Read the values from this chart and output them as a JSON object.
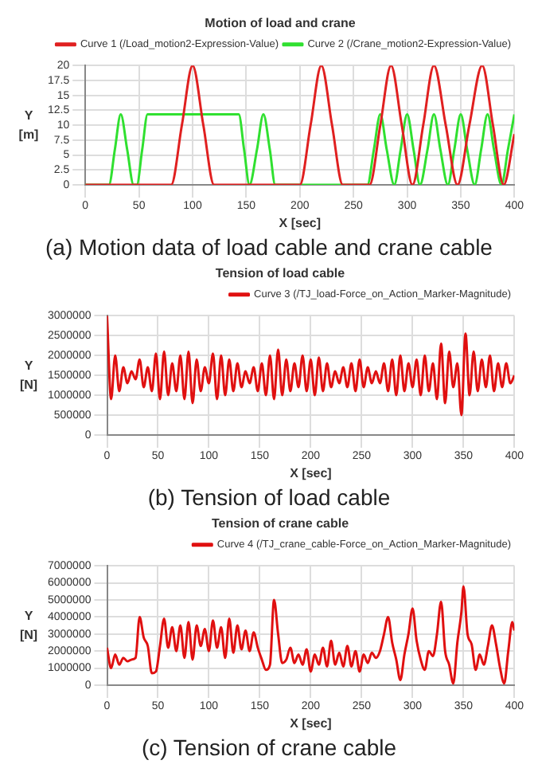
{
  "chart_data": [
    {
      "type": "line",
      "title": "Motion of load and crane",
      "xlabel": "X [sec]",
      "ylabel": "Y [m]",
      "annotations": [
        "(a) Motion data of load cable and crane cable"
      ],
      "xlim": [
        0,
        400
      ],
      "xticks": [
        0,
        50,
        100,
        150,
        200,
        250,
        300,
        350,
        400
      ],
      "ylim": [
        0,
        20
      ],
      "yticks": [
        0,
        2.5,
        5,
        7.5,
        10,
        12.5,
        15,
        17.5,
        20
      ],
      "grid": true,
      "legend": "top right",
      "marker": "none",
      "line_style": "solid",
      "series": [
        {
          "name": "Curve 1 (/Load_motion2-Expression-Value)",
          "color": "#e02020",
          "x": [
            0,
            80,
            90,
            100,
            110,
            120,
            200,
            210,
            220,
            230,
            240,
            265,
            275,
            285,
            295,
            305,
            315,
            325,
            336,
            347,
            358,
            370,
            380,
            390,
            400
          ],
          "values": [
            0,
            0,
            10,
            20,
            10,
            0,
            0,
            10,
            20,
            10,
            0,
            0,
            10,
            20,
            10,
            0,
            10,
            20,
            10,
            0,
            10,
            20,
            10,
            0,
            8.5
          ]
        },
        {
          "name": "Curve 2 (/Crane_motion2-Expression-Value)",
          "color": "#30e030",
          "x": [
            0,
            22,
            27.5,
            33,
            39,
            45,
            48,
            53,
            58,
            143,
            148,
            153,
            160,
            166,
            172,
            177,
            263,
            269,
            275,
            281,
            288,
            294,
            300,
            306,
            312,
            319,
            325,
            331,
            338,
            344,
            350,
            356,
            363,
            369,
            375,
            381,
            388,
            394,
            400
          ],
          "values": [
            0,
            0,
            5.9,
            11.8,
            5.9,
            0,
            0,
            5.9,
            11.8,
            11.8,
            5.9,
            0,
            5.9,
            11.8,
            5.9,
            0,
            0,
            5.9,
            11.8,
            5.9,
            0,
            5.9,
            11.8,
            5.9,
            0,
            5.9,
            11.8,
            5.9,
            0,
            5.9,
            11.8,
            5.9,
            0,
            5.9,
            11.8,
            5.9,
            0,
            5.9,
            11.8
          ]
        }
      ]
    },
    {
      "type": "line",
      "title": "Tension of load cable",
      "xlabel": "X [sec]",
      "ylabel": "Y [N]",
      "annotations": [
        "(b) Tension of load cable"
      ],
      "xlim": [
        0,
        400
      ],
      "xticks": [
        0,
        50,
        100,
        150,
        200,
        250,
        300,
        350,
        400
      ],
      "ylim": [
        0,
        3000000
      ],
      "yticks": [
        0,
        500000,
        1000000,
        1500000,
        2000000,
        2500000,
        3000000
      ],
      "grid": true,
      "legend": "top right",
      "marker": "none",
      "line_style": "solid",
      "series": [
        {
          "name": "Curve 3 (/TJ_load-Force_on_Action_Marker-Magnitude)",
          "color": "#e01010",
          "x": [
            0,
            4,
            8,
            12,
            16,
            20,
            24,
            28,
            32,
            36,
            40,
            44,
            48,
            52,
            56,
            60,
            64,
            68,
            72,
            76,
            80,
            84,
            88,
            92,
            96,
            100,
            104,
            108,
            112,
            116,
            120,
            124,
            128,
            132,
            136,
            140,
            144,
            148,
            152,
            156,
            160,
            164,
            168,
            172,
            176,
            180,
            184,
            188,
            192,
            196,
            200,
            204,
            208,
            212,
            216,
            220,
            224,
            228,
            232,
            236,
            240,
            244,
            248,
            252,
            256,
            260,
            264,
            268,
            272,
            276,
            280,
            284,
            288,
            292,
            296,
            300,
            304,
            308,
            312,
            316,
            320,
            324,
            328,
            332,
            336,
            340,
            344,
            348,
            352,
            356,
            360,
            364,
            368,
            372,
            376,
            380,
            384,
            388,
            392,
            396,
            400
          ],
          "values": [
            3000000,
            900000,
            2000000,
            1100000,
            1700000,
            1300000,
            1600000,
            1400000,
            1900000,
            1200000,
            1700000,
            1100000,
            2050000,
            900000,
            2100000,
            1000000,
            1800000,
            1100000,
            2000000,
            900000,
            2100000,
            800000,
            1900000,
            1100000,
            1700000,
            1300000,
            2050000,
            900000,
            2000000,
            1000000,
            1900000,
            1100000,
            1800000,
            1200000,
            1600000,
            1300000,
            1700000,
            1100000,
            1800000,
            1000000,
            2000000,
            900000,
            2150000,
            1000000,
            1900000,
            1100000,
            1800000,
            1200000,
            2000000,
            1100000,
            1900000,
            1000000,
            1950000,
            1100000,
            1800000,
            1200000,
            1600000,
            1300000,
            1700000,
            1200000,
            1800000,
            1100000,
            1900000,
            1200000,
            1700000,
            1300000,
            1600000,
            1300000,
            1800000,
            1100000,
            1900000,
            1000000,
            2000000,
            1100000,
            1800000,
            1200000,
            1900000,
            1000000,
            2000000,
            1100000,
            1800000,
            900000,
            2300000,
            800000,
            2100000,
            1200000,
            1800000,
            500000,
            2550000,
            1000000,
            2100000,
            1100000,
            1900000,
            1200000,
            2000000,
            1100000,
            1800000,
            1200000,
            1800000,
            1300000,
            1500000
          ]
        }
      ]
    },
    {
      "type": "line",
      "title": "Tension of crane cable",
      "xlabel": "X [sec]",
      "ylabel": "Y [N]",
      "annotations": [
        "(c) Tension of crane cable"
      ],
      "xlim": [
        0,
        400
      ],
      "xticks": [
        0,
        50,
        100,
        150,
        200,
        250,
        300,
        350,
        400
      ],
      "ylim": [
        0,
        7000000
      ],
      "yticks": [
        0,
        1000000,
        2000000,
        3000000,
        4000000,
        5000000,
        6000000,
        7000000
      ],
      "grid": true,
      "legend": "top right",
      "marker": "none",
      "line_style": "solid",
      "series": [
        {
          "name": "Curve 4 (/TJ_crane_cable-Force_on_Action_Marker-Magnitude)",
          "color": "#e01010",
          "x": [
            0,
            4,
            8,
            12,
            16,
            20,
            24,
            28,
            32,
            36,
            40,
            44,
            48,
            52,
            56,
            60,
            64,
            68,
            72,
            76,
            80,
            84,
            88,
            92,
            96,
            100,
            104,
            108,
            112,
            116,
            120,
            124,
            128,
            132,
            136,
            140,
            144,
            148,
            152,
            156,
            160,
            164,
            168,
            172,
            176,
            180,
            184,
            188,
            192,
            196,
            200,
            204,
            208,
            212,
            216,
            220,
            224,
            228,
            232,
            236,
            240,
            244,
            248,
            252,
            256,
            260,
            264,
            268,
            272,
            276,
            280,
            284,
            288,
            292,
            296,
            300,
            304,
            308,
            312,
            316,
            320,
            324,
            328,
            332,
            336,
            340,
            344,
            348,
            350,
            354,
            358,
            362,
            366,
            370,
            374,
            378,
            382,
            386,
            390,
            394,
            398,
            400
          ],
          "values": [
            2200000,
            1000000,
            1800000,
            1200000,
            1600000,
            1400000,
            1500000,
            1600000,
            4000000,
            2800000,
            2300000,
            700000,
            800000,
            2300000,
            3900000,
            2200000,
            3400000,
            2000000,
            3500000,
            1600000,
            3700000,
            1500000,
            3500000,
            2300000,
            3300000,
            2000000,
            3800000,
            2200000,
            3400000,
            1600000,
            3900000,
            1900000,
            3500000,
            2100000,
            3200000,
            2000000,
            3100000,
            2200000,
            1500000,
            900000,
            1200000,
            5000000,
            3000000,
            1300000,
            1500000,
            2200000,
            1300000,
            1800000,
            1200000,
            2100000,
            800000,
            1800000,
            1200000,
            2200000,
            1100000,
            2600000,
            1200000,
            1900000,
            1100000,
            2300000,
            1100000,
            2000000,
            800000,
            1800000,
            1300000,
            1900000,
            1600000,
            2000000,
            3000000,
            4000000,
            2500000,
            1500000,
            300000,
            1800000,
            3000000,
            4500000,
            2600000,
            1500000,
            900000,
            2000000,
            1700000,
            3000000,
            4900000,
            2000000,
            1200000,
            100000,
            2500000,
            4300000,
            5800000,
            3000000,
            2400000,
            900000,
            1800000,
            1200000,
            2300000,
            3500000,
            2400000,
            1000000,
            100000,
            2000000,
            3700000,
            3200000
          ]
        }
      ]
    }
  ]
}
